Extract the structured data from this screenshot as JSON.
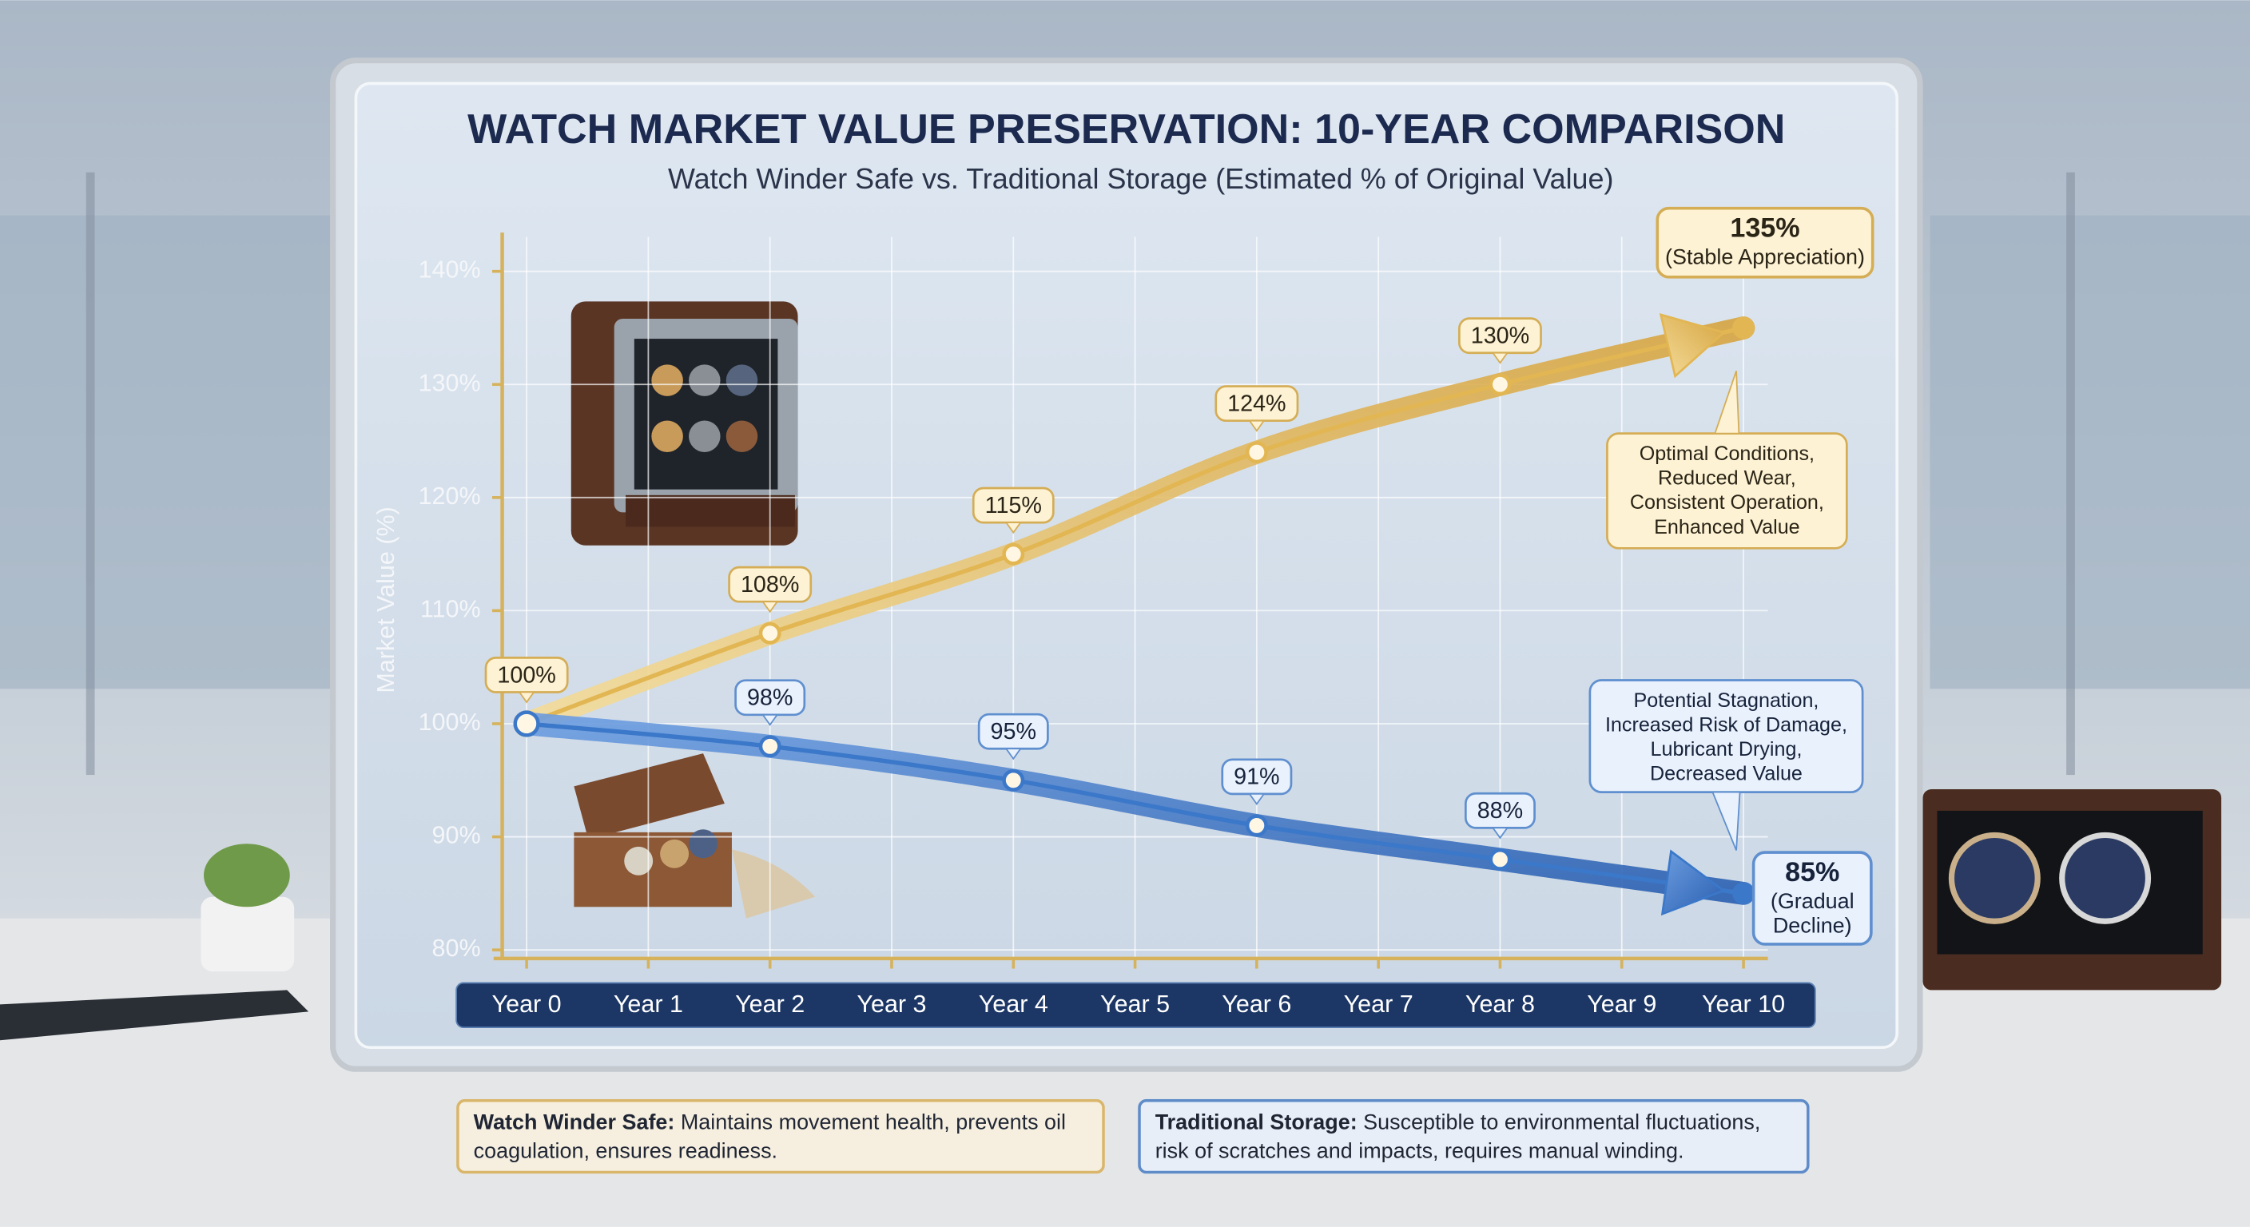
{
  "chart_data": {
    "type": "line",
    "title": "WATCH MARKET VALUE PRESERVATION: 10-YEAR COMPARISON",
    "subtitle": "Watch Winder Safe vs. Traditional Storage (Estimated % of Original Value)",
    "y_label": "Market Value (%)",
    "x": [
      0,
      2,
      4,
      6,
      8,
      10
    ],
    "xlim": [
      0,
      10
    ],
    "xticks": [
      {
        "value": 0,
        "label": "Year 0"
      },
      {
        "value": 1,
        "label": "Year 1"
      },
      {
        "value": 2,
        "label": "Year 2"
      },
      {
        "value": 3,
        "label": "Year 3"
      },
      {
        "value": 4,
        "label": "Year 4"
      },
      {
        "value": 5,
        "label": "Year 5"
      },
      {
        "value": 6,
        "label": "Year 6"
      },
      {
        "value": 7,
        "label": "Year 7"
      },
      {
        "value": 8,
        "label": "Year 8"
      },
      {
        "value": 9,
        "label": "Year 9"
      },
      {
        "value": 10,
        "label": "Year 10"
      }
    ],
    "ylim": [
      80,
      140
    ],
    "yticks": [
      {
        "value": 80,
        "label": "80%"
      },
      {
        "value": 90,
        "label": "90%"
      },
      {
        "value": 100,
        "label": "100%"
      },
      {
        "value": 110,
        "label": "110%"
      },
      {
        "value": 120,
        "label": "120%"
      },
      {
        "value": 130,
        "label": "130%"
      },
      {
        "value": 140,
        "label": "140%"
      }
    ],
    "grid": true,
    "series": [
      {
        "color": "#e2b652",
        "values": [
          100,
          108,
          115,
          124,
          130,
          135
        ],
        "value_labels": [
          "100%",
          "108%",
          "115%",
          "124%",
          "130%",
          "135%"
        ],
        "end_note": [
          "(Stable Appreciation)"
        ],
        "callout": [
          "Optimal Conditions,",
          "Reduced Wear,",
          "Consistent Operation,",
          "Enhanced Value"
        ]
      },
      {
        "color": "#3b78c9",
        "values": [
          100,
          98,
          95,
          91,
          88,
          85
        ],
        "value_labels": [
          null,
          "98%",
          "95%",
          "91%",
          "88%",
          "85%"
        ],
        "end_note": [
          "(Gradual",
          "Decline)"
        ],
        "callout": [
          "Potential Stagnation,",
          "Increased Risk of Damage,",
          "Lubricant Drying,",
          "Decreased Value"
        ]
      }
    ]
  },
  "notes": [
    {
      "title": "Watch Winder Safe:",
      "text": "Maintains movement health, prevents oil coagulation, ensures readiness."
    },
    {
      "title": "Traditional Storage:",
      "text": "Susceptible to environmental fluctuations, risk of scratches and impacts, requires manual winding."
    }
  ]
}
